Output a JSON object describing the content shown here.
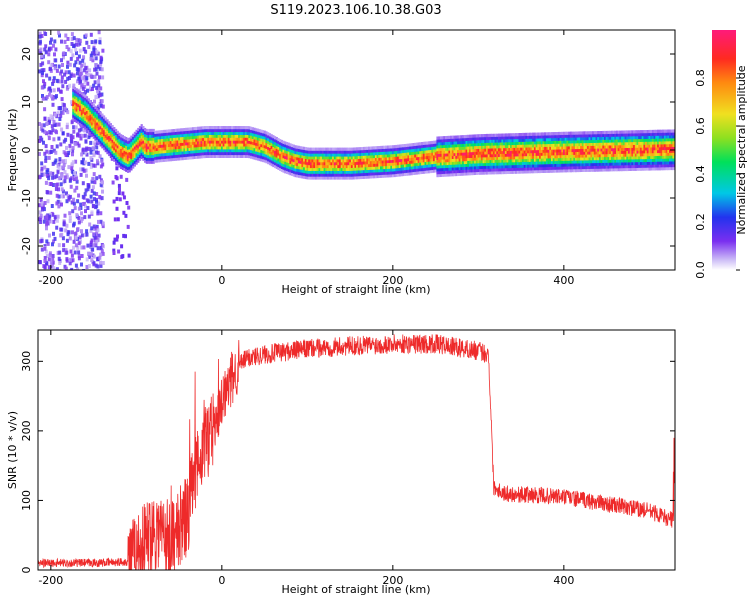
{
  "title": "S119.2023.106.10.38.G03",
  "top_panel": {
    "xlabel": "Height of straight line (km)",
    "ylabel": "Frequency (Hz)",
    "x_ticks": [
      "-200",
      "0",
      "200",
      "400"
    ],
    "y_ticks": [
      "20",
      "10",
      "0",
      "-10",
      "-20"
    ],
    "colorbar": {
      "label": "Normalized spectral amplitude",
      "ticks": [
        "0.0",
        "0.2",
        "0.4",
        "0.6",
        "0.8"
      ]
    }
  },
  "bottom_panel": {
    "xlabel": "Height of straight line (km)",
    "ylabel": "SNR (10 * v/v)",
    "x_ticks": [
      "-200",
      "0",
      "200",
      "400"
    ],
    "y_ticks": [
      "300",
      "200",
      "100",
      "0"
    ]
  },
  "colors": {
    "snr_line": "#ee2a2a",
    "spectrum_low": "#7a2ff0",
    "spectrum_high": "#ff2050"
  },
  "chart_data": [
    {
      "type": "heatmap",
      "title": "S119.2023.106.10.38.G03",
      "xlabel": "Height of straight line (km)",
      "ylabel": "Frequency (Hz)",
      "xlim": [
        -215,
        530
      ],
      "ylim": [
        -25,
        25
      ],
      "colorbar_label": "Normalized spectral amplitude",
      "colorbar_range": [
        0,
        1
      ],
      "ridge": {
        "x": [
          -175,
          -160,
          -150,
          -140,
          -130,
          -120,
          -110,
          -105,
          -100,
          -95,
          -90,
          -80,
          -50,
          -20,
          0,
          30,
          50,
          70,
          85,
          100,
          150,
          200,
          250,
          300,
          400,
          530
        ],
        "freq": [
          10,
          8,
          6,
          4,
          2,
          0,
          -1,
          0,
          1,
          2,
          1,
          1,
          1.5,
          2,
          2,
          2,
          1,
          -1,
          -2,
          -2.5,
          -2.5,
          -2,
          -1,
          -0.5,
          0,
          0.5
        ]
      }
    },
    {
      "type": "line",
      "xlabel": "Height of straight line (km)",
      "ylabel": "SNR (10 * v/v)",
      "xlim": [
        -215,
        530
      ],
      "ylim": [
        0,
        345
      ],
      "x": [
        -215,
        -150,
        -110,
        -100,
        -90,
        -80,
        -70,
        -60,
        -50,
        -40,
        -30,
        -20,
        -10,
        0,
        10,
        20,
        30,
        50,
        100,
        150,
        200,
        250,
        300,
        312,
        318,
        325,
        330,
        400,
        450,
        500,
        530
      ],
      "y": [
        10,
        10,
        12,
        20,
        40,
        60,
        55,
        40,
        60,
        80,
        140,
        180,
        210,
        240,
        270,
        295,
        305,
        310,
        318,
        322,
        325,
        325,
        315,
        310,
        120,
        115,
        110,
        105,
        95,
        85,
        70
      ]
    }
  ]
}
